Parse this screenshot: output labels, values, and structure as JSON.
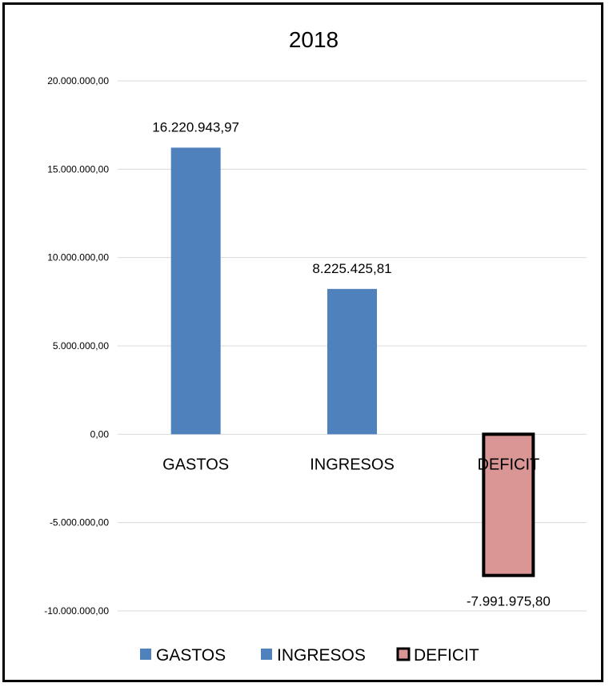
{
  "chart_data": {
    "type": "bar",
    "title": "2018",
    "categories": [
      "GASTOS",
      "INGRESOS",
      "DEFICIT"
    ],
    "values": [
      16220943.97,
      8225425.81,
      -7991975.8
    ],
    "value_labels": [
      "16.220.943,97",
      "8.225.425,81",
      "-7.991.975,80"
    ],
    "ylim": [
      -10000000,
      20000000
    ],
    "y_ticks": [
      20000000,
      15000000,
      10000000,
      5000000,
      0,
      -5000000,
      -10000000
    ],
    "y_tick_labels": [
      "20.000.000,00",
      "15.000.000,00",
      "10.000.000,00",
      "5.000.000,00",
      "0,00",
      "-5.000.000,00",
      "-10.000.000,00"
    ],
    "grid": true,
    "legend": {
      "placement": "bottom",
      "entries": [
        "GASTOS",
        "INGRESOS",
        "DEFICIT"
      ]
    },
    "colors": [
      "#4f81bd",
      "#4f81bd",
      "#da9694"
    ],
    "outlined": [
      false,
      false,
      true
    ]
  }
}
